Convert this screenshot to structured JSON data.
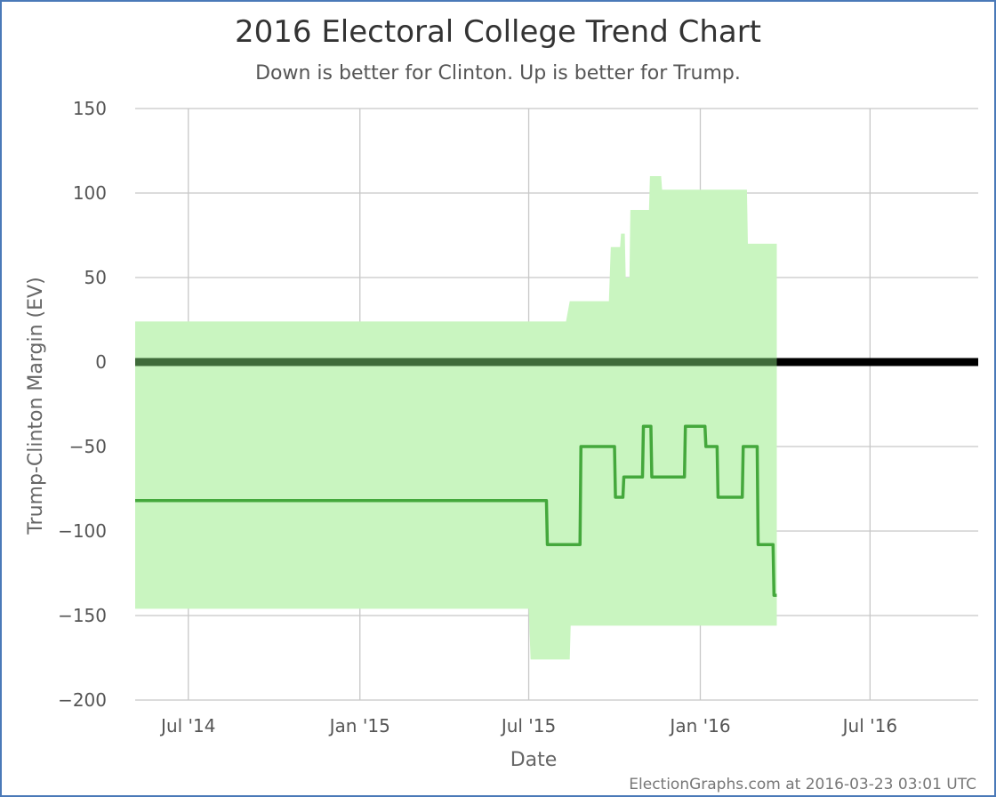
{
  "chart_data": {
    "type": "line",
    "title": "2016 Electoral College Trend Chart",
    "subtitle": "Down is better for Clinton. Up is better for Trump.",
    "xlabel": "Date",
    "ylabel": "Trump-Clinton Margin (EV)",
    "credit": "ElectionGraphs.com at 2016-03-23 03:01 UTC",
    "ylim": [
      -200,
      150
    ],
    "yticks": [
      {
        "value": 150,
        "label": "150"
      },
      {
        "value": 100,
        "label": "100"
      },
      {
        "value": 50,
        "label": "50"
      },
      {
        "value": 0,
        "label": "0"
      },
      {
        "value": -50,
        "label": "−50"
      },
      {
        "value": -100,
        "label": "−100"
      },
      {
        "value": -150,
        "label": "−150"
      },
      {
        "value": -200,
        "label": "−200"
      }
    ],
    "xlim": [
      "2014-05-05",
      "2016-10-25"
    ],
    "xticks": [
      {
        "date": "2014-07-01",
        "label": "Jul '14"
      },
      {
        "date": "2015-01-01",
        "label": "Jan '15"
      },
      {
        "date": "2015-07-01",
        "label": "Jul '15"
      },
      {
        "date": "2016-01-01",
        "label": "Jan '16"
      },
      {
        "date": "2016-07-01",
        "label": "Jul '16"
      }
    ],
    "grid": true,
    "reference_line": {
      "value": 0,
      "end_date_of_dark_segment": "2016-03-23"
    },
    "colors": {
      "band": "#c9f5c0",
      "line": "#44a83c",
      "grid": "#c8c8c8",
      "zero_line": "#000000",
      "zero_line_dark_segment": "#3f6b3a",
      "border": "#4a79b8"
    },
    "series": [
      {
        "kind": "range_band",
        "points": [
          {
            "date": "2014-05-05",
            "upper": 24,
            "lower": -146
          },
          {
            "date": "2015-07-01",
            "upper": 24,
            "lower": -146
          },
          {
            "date": "2015-07-03",
            "upper": 24,
            "lower": -176
          },
          {
            "date": "2015-08-10",
            "upper": 24,
            "lower": -176
          },
          {
            "date": "2015-08-14",
            "upper": 36,
            "lower": -176
          },
          {
            "date": "2015-08-15",
            "upper": 36,
            "lower": -156
          },
          {
            "date": "2015-09-25",
            "upper": 36,
            "lower": -156
          },
          {
            "date": "2015-09-27",
            "upper": 68,
            "lower": -156
          },
          {
            "date": "2015-10-07",
            "upper": 68,
            "lower": -156
          },
          {
            "date": "2015-10-08",
            "upper": 76,
            "lower": -156
          },
          {
            "date": "2015-10-12",
            "upper": 76,
            "lower": -156
          },
          {
            "date": "2015-10-13",
            "upper": 50,
            "lower": -156
          },
          {
            "date": "2015-10-17",
            "upper": 50,
            "lower": -156
          },
          {
            "date": "2015-10-18",
            "upper": 90,
            "lower": -156
          },
          {
            "date": "2015-11-07",
            "upper": 90,
            "lower": -156
          },
          {
            "date": "2015-11-08",
            "upper": 110,
            "lower": -156
          },
          {
            "date": "2015-11-20",
            "upper": 110,
            "lower": -156
          },
          {
            "date": "2015-11-21",
            "upper": 102,
            "lower": -156
          },
          {
            "date": "2016-02-20",
            "upper": 102,
            "lower": -156
          },
          {
            "date": "2016-02-21",
            "upper": 70,
            "lower": -156
          },
          {
            "date": "2016-03-23",
            "upper": 70,
            "lower": -156
          }
        ]
      },
      {
        "kind": "line",
        "points": [
          {
            "date": "2014-05-05",
            "value": -82
          },
          {
            "date": "2015-07-20",
            "value": -82
          },
          {
            "date": "2015-07-21",
            "value": -108
          },
          {
            "date": "2015-08-25",
            "value": -108
          },
          {
            "date": "2015-08-26",
            "value": -50
          },
          {
            "date": "2015-10-01",
            "value": -50
          },
          {
            "date": "2015-10-02",
            "value": -80
          },
          {
            "date": "2015-10-10",
            "value": -80
          },
          {
            "date": "2015-10-11",
            "value": -68
          },
          {
            "date": "2015-10-31",
            "value": -68
          },
          {
            "date": "2015-11-01",
            "value": -38
          },
          {
            "date": "2015-11-09",
            "value": -38
          },
          {
            "date": "2015-11-10",
            "value": -68
          },
          {
            "date": "2015-12-15",
            "value": -68
          },
          {
            "date": "2015-12-16",
            "value": -38
          },
          {
            "date": "2016-01-06",
            "value": -38
          },
          {
            "date": "2016-01-07",
            "value": -50
          },
          {
            "date": "2016-01-19",
            "value": -50
          },
          {
            "date": "2016-01-20",
            "value": -80
          },
          {
            "date": "2016-02-15",
            "value": -80
          },
          {
            "date": "2016-02-16",
            "value": -50
          },
          {
            "date": "2016-03-02",
            "value": -50
          },
          {
            "date": "2016-03-03",
            "value": -108
          },
          {
            "date": "2016-03-19",
            "value": -108
          },
          {
            "date": "2016-03-20",
            "value": -138
          },
          {
            "date": "2016-03-23",
            "value": -138
          }
        ]
      }
    ]
  }
}
